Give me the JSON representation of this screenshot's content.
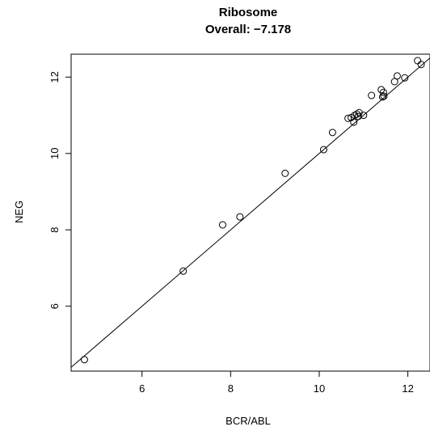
{
  "chart_data": {
    "type": "scatter",
    "title": "Ribosome",
    "subtitle": "Overall: −7.178",
    "xlabel": "BCR/ABL",
    "ylabel": "NEG",
    "xlim": [
      4.4,
      12.5
    ],
    "ylim": [
      4.3,
      12.6
    ],
    "x_ticks": [
      6,
      8,
      10,
      12
    ],
    "y_ticks": [
      6,
      8,
      10,
      12
    ],
    "grid": false,
    "identity_line": true,
    "marker": "open-circle",
    "points": [
      {
        "x": 4.7,
        "y": 4.6
      },
      {
        "x": 6.93,
        "y": 6.92
      },
      {
        "x": 7.82,
        "y": 8.13
      },
      {
        "x": 8.21,
        "y": 8.34
      },
      {
        "x": 9.23,
        "y": 9.48
      },
      {
        "x": 10.1,
        "y": 10.1
      },
      {
        "x": 10.3,
        "y": 10.55
      },
      {
        "x": 10.65,
        "y": 10.92
      },
      {
        "x": 10.72,
        "y": 10.94
      },
      {
        "x": 10.78,
        "y": 10.82
      },
      {
        "x": 10.8,
        "y": 11.0
      },
      {
        "x": 10.85,
        "y": 11.03
      },
      {
        "x": 10.9,
        "y": 11.07
      },
      {
        "x": 10.88,
        "y": 10.97
      },
      {
        "x": 11.0,
        "y": 11.0
      },
      {
        "x": 11.18,
        "y": 11.52
      },
      {
        "x": 11.4,
        "y": 11.67
      },
      {
        "x": 11.43,
        "y": 11.48
      },
      {
        "x": 11.45,
        "y": 11.6
      },
      {
        "x": 11.46,
        "y": 11.5
      },
      {
        "x": 11.7,
        "y": 11.88
      },
      {
        "x": 11.76,
        "y": 12.03
      },
      {
        "x": 11.93,
        "y": 11.98
      },
      {
        "x": 12.22,
        "y": 12.43
      },
      {
        "x": 12.3,
        "y": 12.33
      }
    ]
  }
}
